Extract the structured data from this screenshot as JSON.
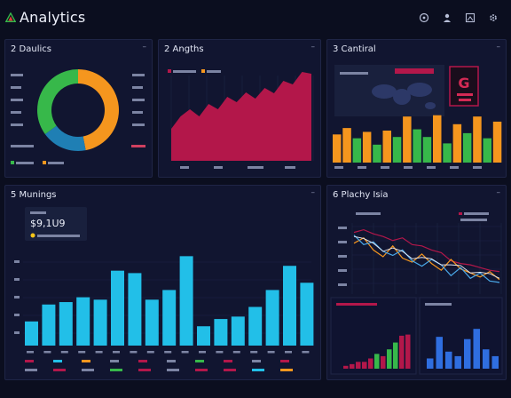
{
  "app": {
    "title": "Analytics"
  },
  "top_icons": [
    "github-icon",
    "user-icon",
    "image-icon",
    "gear-icon"
  ],
  "colors": {
    "orange": "#f5961e",
    "blue": "#1f7fb4",
    "green": "#37b84a",
    "crimson": "#b3174a",
    "cyan": "#22bfe8",
    "bg": "#0b0e1f",
    "panel": "#111530"
  },
  "panels": {
    "p1": {
      "title": "2 Daulics",
      "menu": "–"
    },
    "p2": {
      "title": "2 Angths",
      "menu": "–"
    },
    "p3": {
      "title": "3 Cantiral",
      "menu": "–"
    },
    "p4": {
      "title": "5 Munings",
      "menu": "–"
    },
    "p5": {
      "title": "6 Plachy Isia",
      "menu": "–"
    }
  },
  "donut": {
    "segments": [
      {
        "value": 0.47,
        "color": "#f5961e"
      },
      {
        "value": 0.18,
        "color": "#1f7fb4"
      },
      {
        "value": 0.35,
        "color": "#37b84a"
      }
    ]
  },
  "area": {
    "values": [
      0.36,
      0.5,
      0.58,
      0.5,
      0.64,
      0.58,
      0.72,
      0.66,
      0.77,
      0.7,
      0.82,
      0.76,
      0.9,
      0.86,
      1.0,
      0.98
    ]
  },
  "bars3": {
    "values": [
      0.44,
      0.54,
      0.38,
      0.48,
      0.28,
      0.5,
      0.4,
      0.72,
      0.52,
      0.4,
      0.74,
      0.3,
      0.6,
      0.46,
      0.72,
      0.38,
      0.64
    ],
    "colors": [
      "#f5961e",
      "#f5961e",
      "#37b84a",
      "#f5961e",
      "#37b84a",
      "#f5961e",
      "#37b84a",
      "#f5961e",
      "#37b84a",
      "#37b84a",
      "#f5961e",
      "#37b84a",
      "#f5961e",
      "#37b84a",
      "#f5961e",
      "#37b84a",
      "#f5961e"
    ]
  },
  "badge": {
    "letter": "G"
  },
  "bars4": {
    "values": [
      0.2,
      0.34,
      0.36,
      0.4,
      0.38,
      0.62,
      0.6,
      0.38,
      0.46,
      0.74,
      0.16,
      0.22,
      0.24,
      0.32,
      0.46,
      0.66,
      0.52
    ]
  },
  "kpi": {
    "value": "$9,1U9"
  },
  "lines": {
    "a": [
      0.7,
      0.78,
      0.6,
      0.5,
      0.66,
      0.48,
      0.42,
      0.54,
      0.4,
      0.3,
      0.46,
      0.32,
      0.26,
      0.2,
      0.28,
      0.16
    ],
    "b": [
      0.82,
      0.68,
      0.72,
      0.58,
      0.52,
      0.6,
      0.44,
      0.36,
      0.46,
      0.38,
      0.22,
      0.34,
      0.18,
      0.26,
      0.14,
      0.12
    ],
    "c": [
      0.86,
      0.9,
      0.84,
      0.8,
      0.74,
      0.78,
      0.68,
      0.66,
      0.6,
      0.56,
      0.44,
      0.4,
      0.38,
      0.34,
      0.3,
      0.28
    ]
  },
  "sub1": {
    "values": [
      0.05,
      0.08,
      0.12,
      0.12,
      0.18,
      0.26,
      0.22,
      0.34,
      0.46,
      0.58,
      0.6
    ],
    "colors": [
      "#b3174a",
      "#b3174a",
      "#b3174a",
      "#b3174a",
      "#b3174a",
      "#37b84a",
      "#b3174a",
      "#37b84a",
      "#37b84a",
      "#b3174a",
      "#b3174a"
    ]
  },
  "sub2": {
    "values": [
      0.18,
      0.56,
      0.3,
      0.22,
      0.52,
      0.7,
      0.34,
      0.22
    ]
  }
}
